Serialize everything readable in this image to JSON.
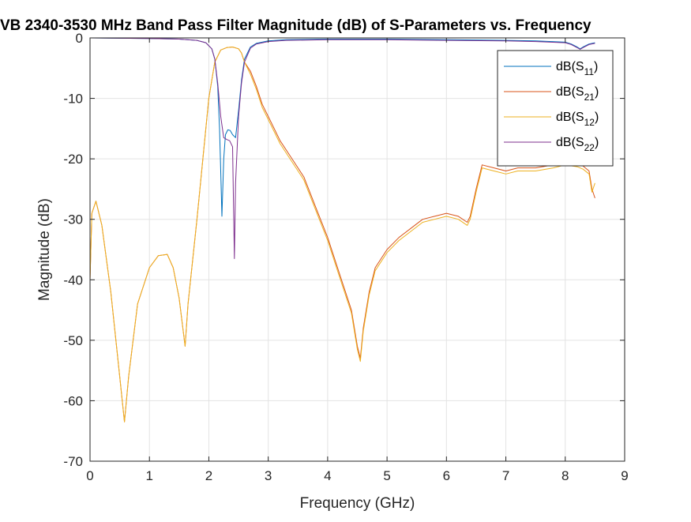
{
  "chart_data": {
    "type": "line",
    "title": "VB 2340-3530 MHz Band Pass Filter Magnitude (dB) of S-Parameters vs. Frequency",
    "xlabel": "Frequency (GHz)",
    "ylabel": "Magnitude (dB)",
    "xlim": [
      0,
      9
    ],
    "ylim": [
      -70,
      0
    ],
    "xticks": [
      "0",
      "1",
      "2",
      "3",
      "4",
      "5",
      "6",
      "7",
      "8",
      "9"
    ],
    "yticks": [
      "0",
      "-10",
      "-20",
      "-30",
      "-40",
      "-50",
      "-60",
      "-70"
    ],
    "grid": true,
    "legend_position": "top-right",
    "series": [
      {
        "name": "dB(S11)",
        "label_base": "dB(S",
        "label_sub": "11",
        "label_close": ")",
        "color": "#0072BD",
        "x": [
          0,
          1,
          1.5,
          1.8,
          1.95,
          2.05,
          2.1,
          2.15,
          2.18,
          2.2,
          2.22,
          2.25,
          2.28,
          2.32,
          2.36,
          2.4,
          2.45,
          2.5,
          2.55,
          2.6,
          2.7,
          2.8,
          3.0,
          3.3,
          4,
          5,
          6,
          7,
          7.5,
          8,
          8.1,
          8.2,
          8.25,
          8.3,
          8.4,
          8.5
        ],
        "y": [
          0,
          -0.1,
          -0.2,
          -0.4,
          -0.8,
          -1.8,
          -3.5,
          -8,
          -15,
          -22,
          -29.5,
          -20,
          -16,
          -15.2,
          -15.3,
          -16,
          -16.5,
          -12,
          -7,
          -3.5,
          -1.5,
          -0.9,
          -0.5,
          -0.3,
          -0.2,
          -0.2,
          -0.3,
          -0.4,
          -0.5,
          -0.7,
          -1.0,
          -1.5,
          -1.8,
          -1.5,
          -1.0,
          -0.8
        ]
      },
      {
        "name": "dB(S21)",
        "label_base": "dB(S",
        "label_sub": "21",
        "label_close": ")",
        "color": "#D95319",
        "x": [
          0,
          0.03,
          0.1,
          0.2,
          0.35,
          0.5,
          0.58,
          0.65,
          0.8,
          1.0,
          1.15,
          1.3,
          1.4,
          1.5,
          1.6,
          1.65,
          1.8,
          1.9,
          2.0,
          2.1,
          2.2,
          2.3,
          2.4,
          2.5,
          2.55,
          2.6,
          2.7,
          2.8,
          2.9,
          3.0,
          3.2,
          3.4,
          3.6,
          3.8,
          4.0,
          4.2,
          4.4,
          4.5,
          4.55,
          4.6,
          4.7,
          4.8,
          5.0,
          5.2,
          5.4,
          5.6,
          5.8,
          6.0,
          6.2,
          6.35,
          6.4,
          6.5,
          6.6,
          6.8,
          7.0,
          7.2,
          7.5,
          7.8,
          8.0,
          8.2,
          8.3,
          8.4,
          8.45,
          8.5
        ],
        "y": [
          -40,
          -29,
          -27,
          -31,
          -42,
          -56,
          -63.5,
          -56,
          -44,
          -38,
          -36,
          -35.8,
          -38,
          -43,
          -51,
          -44,
          -30,
          -20,
          -10,
          -4,
          -2,
          -1.6,
          -1.5,
          -1.8,
          -2.5,
          -4,
          -5.5,
          -8,
          -11,
          -13,
          -17,
          -20,
          -23,
          -28,
          -33,
          -39,
          -45,
          -51,
          -53,
          -48,
          -42,
          -38,
          -35,
          -33,
          -31.5,
          -30,
          -29.5,
          -29,
          -29.5,
          -30.5,
          -29.5,
          -25,
          -21,
          -21.5,
          -22,
          -21.5,
          -21.5,
          -21,
          -20.5,
          -20.8,
          -21.2,
          -22,
          -25,
          -26.5
        ]
      },
      {
        "name": "dB(S12)",
        "label_base": "dB(S",
        "label_sub": "12",
        "label_close": ")",
        "color": "#EDB120",
        "x": [
          0,
          0.03,
          0.1,
          0.2,
          0.35,
          0.5,
          0.58,
          0.65,
          0.8,
          1.0,
          1.15,
          1.3,
          1.4,
          1.5,
          1.6,
          1.65,
          1.8,
          1.9,
          2.0,
          2.1,
          2.2,
          2.3,
          2.4,
          2.5,
          2.55,
          2.6,
          2.7,
          2.8,
          2.9,
          3.0,
          3.2,
          3.4,
          3.6,
          3.8,
          4.0,
          4.2,
          4.4,
          4.5,
          4.55,
          4.6,
          4.7,
          4.8,
          5.0,
          5.2,
          5.4,
          5.6,
          5.8,
          6.0,
          6.2,
          6.35,
          6.4,
          6.5,
          6.6,
          6.8,
          7.0,
          7.2,
          7.5,
          7.8,
          8.0,
          8.2,
          8.3,
          8.4,
          8.45,
          8.5
        ],
        "y": [
          -40,
          -29,
          -27,
          -31,
          -42,
          -56,
          -63.5,
          -56,
          -44,
          -38,
          -36,
          -35.8,
          -38,
          -43,
          -51,
          -44,
          -30,
          -20,
          -10,
          -4,
          -2,
          -1.6,
          -1.5,
          -1.8,
          -2.5,
          -4,
          -6,
          -8.5,
          -11.5,
          -13.5,
          -17.5,
          -20.5,
          -23.5,
          -28.5,
          -33.5,
          -39.5,
          -45.5,
          -51.5,
          -53.5,
          -48.5,
          -42.5,
          -38.5,
          -35.5,
          -33.5,
          -32,
          -30.5,
          -30,
          -29.5,
          -30,
          -31,
          -30,
          -25.5,
          -21.5,
          -22,
          -22.5,
          -22,
          -22,
          -21.5,
          -21,
          -21.3,
          -21.7,
          -22.5,
          -25.5,
          -24
        ]
      },
      {
        "name": "dB(S22)",
        "label_base": "dB(S",
        "label_sub": "22",
        "label_close": ")",
        "color": "#7E2F8E",
        "x": [
          0,
          1,
          1.5,
          1.8,
          1.95,
          2.05,
          2.1,
          2.15,
          2.2,
          2.25,
          2.3,
          2.35,
          2.4,
          2.43,
          2.45,
          2.5,
          2.55,
          2.6,
          2.7,
          2.8,
          3.0,
          3.3,
          4,
          5,
          6,
          7,
          7.5,
          8,
          8.1,
          8.2,
          8.25,
          8.3,
          8.4,
          8.5
        ],
        "y": [
          0,
          -0.1,
          -0.2,
          -0.4,
          -0.8,
          -1.8,
          -3.5,
          -7.5,
          -13,
          -16.5,
          -16.8,
          -17,
          -18,
          -36.5,
          -24,
          -13,
          -7.5,
          -4,
          -1.7,
          -1.0,
          -0.6,
          -0.4,
          -0.3,
          -0.3,
          -0.4,
          -0.5,
          -0.6,
          -0.8,
          -1.1,
          -1.6,
          -1.9,
          -1.6,
          -1.1,
          -0.9
        ]
      }
    ]
  }
}
